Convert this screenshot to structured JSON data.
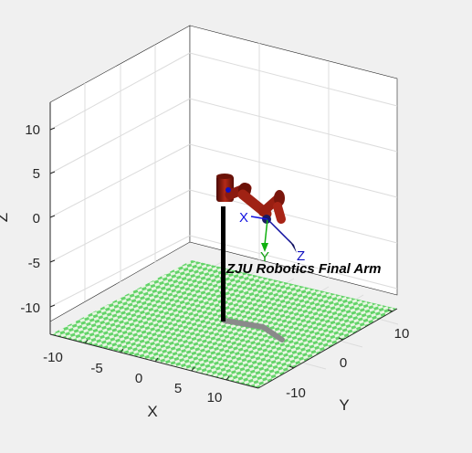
{
  "figure": {
    "background": "#f0f0f0",
    "pane_color": "#ffffff",
    "grid_color": "#dcdcdc",
    "axis_color": "#262626"
  },
  "axes": {
    "xlabel": "X",
    "ylabel": "Y",
    "zlabel": "Z",
    "x_ticks": [
      "-10",
      "-5",
      "0",
      "5",
      "10"
    ],
    "y_ticks": [
      "-10",
      "0",
      "10"
    ],
    "z_ticks": [
      "10",
      "5",
      "0",
      "-5",
      "-10"
    ]
  },
  "robot": {
    "name": "ZJU Robotics Final Arm",
    "link_color": "#8b1a10",
    "pedestal_color": "#000000",
    "cable_color": "#8a8a8a",
    "floor_colors": [
      "#64d46a",
      "#e8f5e2"
    ]
  },
  "tool_frame": {
    "x_label": "X",
    "y_label": "Y",
    "z_label": "Z",
    "x_color": "#1010e0",
    "y_color": "#10b010",
    "z_color": "#1010a0"
  }
}
